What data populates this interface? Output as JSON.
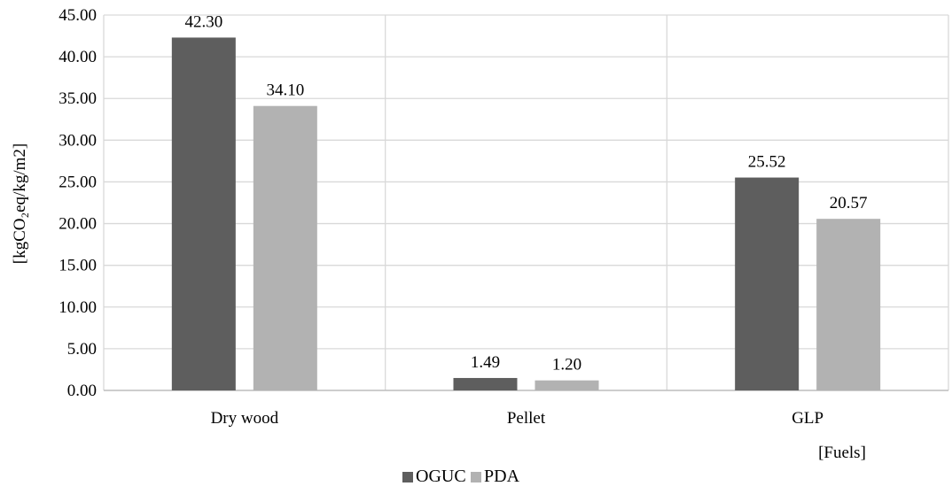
{
  "chart_data": {
    "type": "bar",
    "categories": [
      "Dry wood",
      "Pellet",
      "GLP"
    ],
    "series": [
      {
        "name": "OGUC",
        "values": [
          42.3,
          1.49,
          25.52
        ],
        "color": "#5e5e5e"
      },
      {
        "name": "PDA",
        "values": [
          34.1,
          1.2,
          20.57
        ],
        "color": "#b2b2b2"
      }
    ],
    "data_labels": [
      [
        "42.30",
        "1.49",
        "25.52"
      ],
      [
        "34.10",
        "1.20",
        "20.57"
      ]
    ],
    "ylabel": "[kgCO₂eq/kg/m2]",
    "xlabel": "[Fuels]",
    "ylim": [
      0,
      45
    ],
    "ytick_step": 5,
    "ytick_labels": [
      "0.00",
      "5.00",
      "10.00",
      "15.00",
      "20.00",
      "25.00",
      "30.00",
      "35.00",
      "40.00",
      "45.00"
    ],
    "grid": true,
    "legend_position": "bottom"
  }
}
